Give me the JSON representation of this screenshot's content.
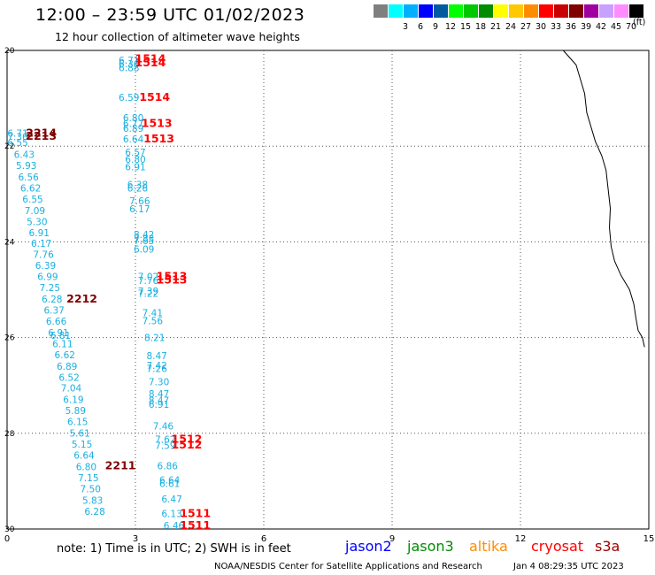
{
  "header": {
    "title": "12:00 – 23:59 UTC 01/02/2023",
    "subtitle": "12 hour collection of altimeter wave heights"
  },
  "color_scale": {
    "unit": "(ft)",
    "swatches": [
      {
        "label": "",
        "color": "#7f7f7f"
      },
      {
        "label": "3",
        "color": "#00ffff"
      },
      {
        "label": "6",
        "color": "#00b0ff"
      },
      {
        "label": "9",
        "color": "#0000ff"
      },
      {
        "label": "12",
        "color": "#005aa0"
      },
      {
        "label": "15",
        "color": "#00ff00"
      },
      {
        "label": "18",
        "color": "#00c800"
      },
      {
        "label": "21",
        "color": "#008c00"
      },
      {
        "label": "24",
        "color": "#ffff00"
      },
      {
        "label": "27",
        "color": "#ffc800"
      },
      {
        "label": "30",
        "color": "#ff8c00"
      },
      {
        "label": "33",
        "color": "#ff0000"
      },
      {
        "label": "36",
        "color": "#c80000"
      },
      {
        "label": "39",
        "color": "#800000"
      },
      {
        "label": "42",
        "color": "#a000a0"
      },
      {
        "label": "45",
        "color": "#c8a0ff"
      },
      {
        "label": "70",
        "color": "#ff8cff"
      },
      {
        "label": "",
        "color": "#000000"
      }
    ]
  },
  "map": {
    "lon_ticks": [
      "0",
      "3",
      "6",
      "9",
      "12",
      "15"
    ],
    "lat_ticks": [
      "20",
      "22",
      "24",
      "26",
      "28",
      "30"
    ],
    "lon_range": [
      0,
      15
    ],
    "lat_range": [
      20,
      30
    ],
    "lat_direction": "south-down",
    "grid": "dotted",
    "colors": {
      "swh_text": "#1ab0e0",
      "time_red": "#ff0000",
      "time_dark": "#800000",
      "coast": "#000000"
    }
  },
  "observations": [
    {
      "lon": 2.85,
      "lat": 20.28,
      "v": "6.71"
    },
    {
      "lon": 2.85,
      "lat": 20.35,
      "v": "6.36"
    },
    {
      "lon": 2.85,
      "lat": 20.43,
      "v": "6.88"
    },
    {
      "lon": 2.85,
      "lat": 21.05,
      "v": "6.59"
    },
    {
      "lon": 2.95,
      "lat": 21.48,
      "v": "6.80"
    },
    {
      "lon": 2.95,
      "lat": 21.6,
      "v": "6.77"
    },
    {
      "lon": 2.95,
      "lat": 21.7,
      "v": "6.89"
    },
    {
      "lon": 2.95,
      "lat": 21.92,
      "v": "6.64"
    },
    {
      "lon": 3.0,
      "lat": 22.2,
      "v": "6.57"
    },
    {
      "lon": 3.0,
      "lat": 22.35,
      "v": "6.80"
    },
    {
      "lon": 3.0,
      "lat": 22.5,
      "v": "6.91"
    },
    {
      "lon": 3.05,
      "lat": 22.87,
      "v": "6.38"
    },
    {
      "lon": 3.05,
      "lat": 22.95,
      "v": "6.26"
    },
    {
      "lon": 3.1,
      "lat": 23.22,
      "v": "7.66"
    },
    {
      "lon": 3.1,
      "lat": 23.38,
      "v": "6.17"
    },
    {
      "lon": 3.2,
      "lat": 23.92,
      "v": "8.42"
    },
    {
      "lon": 3.2,
      "lat": 24.0,
      "v": "7.83"
    },
    {
      "lon": 3.2,
      "lat": 24.05,
      "v": "7.65"
    },
    {
      "lon": 3.2,
      "lat": 24.22,
      "v": "6.09"
    },
    {
      "lon": 3.3,
      "lat": 24.8,
      "v": "7.02"
    },
    {
      "lon": 3.3,
      "lat": 24.88,
      "v": "7.76"
    },
    {
      "lon": 3.3,
      "lat": 25.1,
      "v": "7.39"
    },
    {
      "lon": 3.3,
      "lat": 25.15,
      "v": "7.22"
    },
    {
      "lon": 3.4,
      "lat": 25.55,
      "v": "7.41"
    },
    {
      "lon": 3.4,
      "lat": 25.72,
      "v": "7.56"
    },
    {
      "lon": 3.45,
      "lat": 26.07,
      "v": "8.21"
    },
    {
      "lon": 3.5,
      "lat": 26.45,
      "v": "8.47"
    },
    {
      "lon": 3.5,
      "lat": 26.65,
      "v": "7.42"
    },
    {
      "lon": 3.5,
      "lat": 26.72,
      "v": "7.26"
    },
    {
      "lon": 3.55,
      "lat": 27.0,
      "v": "7.30"
    },
    {
      "lon": 3.55,
      "lat": 27.25,
      "v": "8.47"
    },
    {
      "lon": 3.55,
      "lat": 27.38,
      "v": "8.47"
    },
    {
      "lon": 3.55,
      "lat": 27.47,
      "v": "6.91"
    },
    {
      "lon": 3.65,
      "lat": 27.92,
      "v": "7.46"
    },
    {
      "lon": 3.7,
      "lat": 28.2,
      "v": "7.62"
    },
    {
      "lon": 3.7,
      "lat": 28.33,
      "v": "7.59"
    },
    {
      "lon": 3.75,
      "lat": 28.75,
      "v": "6.86"
    },
    {
      "lon": 3.8,
      "lat": 29.05,
      "v": "6.64"
    },
    {
      "lon": 3.8,
      "lat": 29.12,
      "v": "6.61"
    },
    {
      "lon": 3.85,
      "lat": 29.45,
      "v": "6.47"
    },
    {
      "lon": 3.85,
      "lat": 29.75,
      "v": "6.13"
    },
    {
      "lon": 3.9,
      "lat": 30.0,
      "v": "6.46"
    },
    {
      "lon": 0.25,
      "lat": 21.8,
      "v": "6.71"
    },
    {
      "lon": 0.25,
      "lat": 21.88,
      "v": "7.30"
    },
    {
      "lon": 0.25,
      "lat": 22.0,
      "v": "6.55"
    },
    {
      "lon": 0.4,
      "lat": 22.25,
      "v": "6.43"
    },
    {
      "lon": 0.45,
      "lat": 22.48,
      "v": "5.93"
    },
    {
      "lon": 0.5,
      "lat": 22.72,
      "v": "6.56"
    },
    {
      "lon": 0.55,
      "lat": 22.95,
      "v": "6.62"
    },
    {
      "lon": 0.6,
      "lat": 23.18,
      "v": "6.55"
    },
    {
      "lon": 0.65,
      "lat": 23.42,
      "v": "7.09"
    },
    {
      "lon": 0.7,
      "lat": 23.65,
      "v": "5.30"
    },
    {
      "lon": 0.75,
      "lat": 23.88,
      "v": "6.91"
    },
    {
      "lon": 0.8,
      "lat": 24.1,
      "v": "6.17"
    },
    {
      "lon": 0.85,
      "lat": 24.33,
      "v": "7.76"
    },
    {
      "lon": 0.9,
      "lat": 24.57,
      "v": "6.39"
    },
    {
      "lon": 0.95,
      "lat": 24.8,
      "v": "6.99"
    },
    {
      "lon": 1.0,
      "lat": 25.03,
      "v": "7.25"
    },
    {
      "lon": 1.05,
      "lat": 25.27,
      "v": "6.28"
    },
    {
      "lon": 1.1,
      "lat": 25.5,
      "v": "6.37"
    },
    {
      "lon": 1.15,
      "lat": 25.73,
      "v": "6.66"
    },
    {
      "lon": 1.2,
      "lat": 25.97,
      "v": "6.91"
    },
    {
      "lon": 1.25,
      "lat": 26.03,
      "v": "6.81"
    },
    {
      "lon": 1.3,
      "lat": 26.2,
      "v": "6.11"
    },
    {
      "lon": 1.35,
      "lat": 26.43,
      "v": "6.62"
    },
    {
      "lon": 1.4,
      "lat": 26.67,
      "v": "6.89"
    },
    {
      "lon": 1.45,
      "lat": 26.9,
      "v": "6.52"
    },
    {
      "lon": 1.5,
      "lat": 27.13,
      "v": "7.04"
    },
    {
      "lon": 1.55,
      "lat": 27.37,
      "v": "6.19"
    },
    {
      "lon": 1.6,
      "lat": 27.6,
      "v": "5.89"
    },
    {
      "lon": 1.65,
      "lat": 27.83,
      "v": "6.15"
    },
    {
      "lon": 1.7,
      "lat": 28.07,
      "v": "5.61"
    },
    {
      "lon": 1.75,
      "lat": 28.3,
      "v": "5.15"
    },
    {
      "lon": 1.8,
      "lat": 28.53,
      "v": "6.64"
    },
    {
      "lon": 1.85,
      "lat": 28.77,
      "v": "6.80"
    },
    {
      "lon": 1.9,
      "lat": 29.0,
      "v": "7.15"
    },
    {
      "lon": 1.95,
      "lat": 29.23,
      "v": "7.50"
    },
    {
      "lon": 2.0,
      "lat": 29.47,
      "v": "5.83"
    },
    {
      "lon": 2.05,
      "lat": 29.7,
      "v": "6.28"
    }
  ],
  "time_labels": [
    {
      "lon": 3.35,
      "lat": 20.25,
      "v": "1514",
      "c": "red"
    },
    {
      "lon": 3.35,
      "lat": 20.33,
      "v": "1514",
      "c": "red"
    },
    {
      "lon": 3.45,
      "lat": 21.05,
      "v": "1514",
      "c": "red"
    },
    {
      "lon": 3.5,
      "lat": 21.6,
      "v": "1513",
      "c": "red"
    },
    {
      "lon": 3.55,
      "lat": 21.92,
      "v": "1513",
      "c": "red"
    },
    {
      "lon": 0.8,
      "lat": 21.8,
      "v": "2214",
      "c": "dark"
    },
    {
      "lon": 0.8,
      "lat": 21.87,
      "v": "2213",
      "c": "dark"
    },
    {
      "lon": 3.85,
      "lat": 24.8,
      "v": "1513",
      "c": "red"
    },
    {
      "lon": 3.85,
      "lat": 24.87,
      "v": "1513",
      "c": "red"
    },
    {
      "lon": 1.75,
      "lat": 25.27,
      "v": "2212",
      "c": "dark"
    },
    {
      "lon": 4.2,
      "lat": 28.2,
      "v": "1512",
      "c": "red"
    },
    {
      "lon": 4.2,
      "lat": 28.32,
      "v": "1512",
      "c": "red"
    },
    {
      "lon": 2.65,
      "lat": 28.75,
      "v": "2211",
      "c": "dark"
    },
    {
      "lon": 4.4,
      "lat": 29.75,
      "v": "1511",
      "c": "red"
    },
    {
      "lon": 4.4,
      "lat": 30.0,
      "v": "1511",
      "c": "red"
    }
  ],
  "coastline": [
    [
      13.0,
      20.0
    ],
    [
      13.15,
      20.15
    ],
    [
      13.3,
      20.3
    ],
    [
      13.4,
      20.6
    ],
    [
      13.5,
      20.9
    ],
    [
      13.55,
      21.3
    ],
    [
      13.65,
      21.6
    ],
    [
      13.75,
      21.9
    ],
    [
      13.9,
      22.2
    ],
    [
      14.0,
      22.5
    ],
    [
      14.05,
      22.9
    ],
    [
      14.1,
      23.3
    ],
    [
      14.08,
      23.7
    ],
    [
      14.12,
      24.1
    ],
    [
      14.2,
      24.4
    ],
    [
      14.35,
      24.7
    ],
    [
      14.55,
      25.0
    ],
    [
      14.65,
      25.3
    ],
    [
      14.7,
      25.6
    ],
    [
      14.75,
      25.85
    ],
    [
      14.85,
      26.0
    ],
    [
      14.9,
      26.2
    ]
  ],
  "note": "note:  1) Time is in UTC;  2) SWH is in feet",
  "legend": [
    {
      "label": "jason2",
      "color": "#0000ff"
    },
    {
      "label": "jason3",
      "color": "#008c00"
    },
    {
      "label": "altika",
      "color": "#ff8c00"
    },
    {
      "label": "cryosat",
      "color": "#ff0000"
    },
    {
      "label": "s3a",
      "color": "#a00000"
    }
  ],
  "footer": {
    "credit": "NOAA/NESDIS Center for Satellite Applications and Research",
    "generated": "Jan  4 08:29:35 UTC 2023"
  }
}
